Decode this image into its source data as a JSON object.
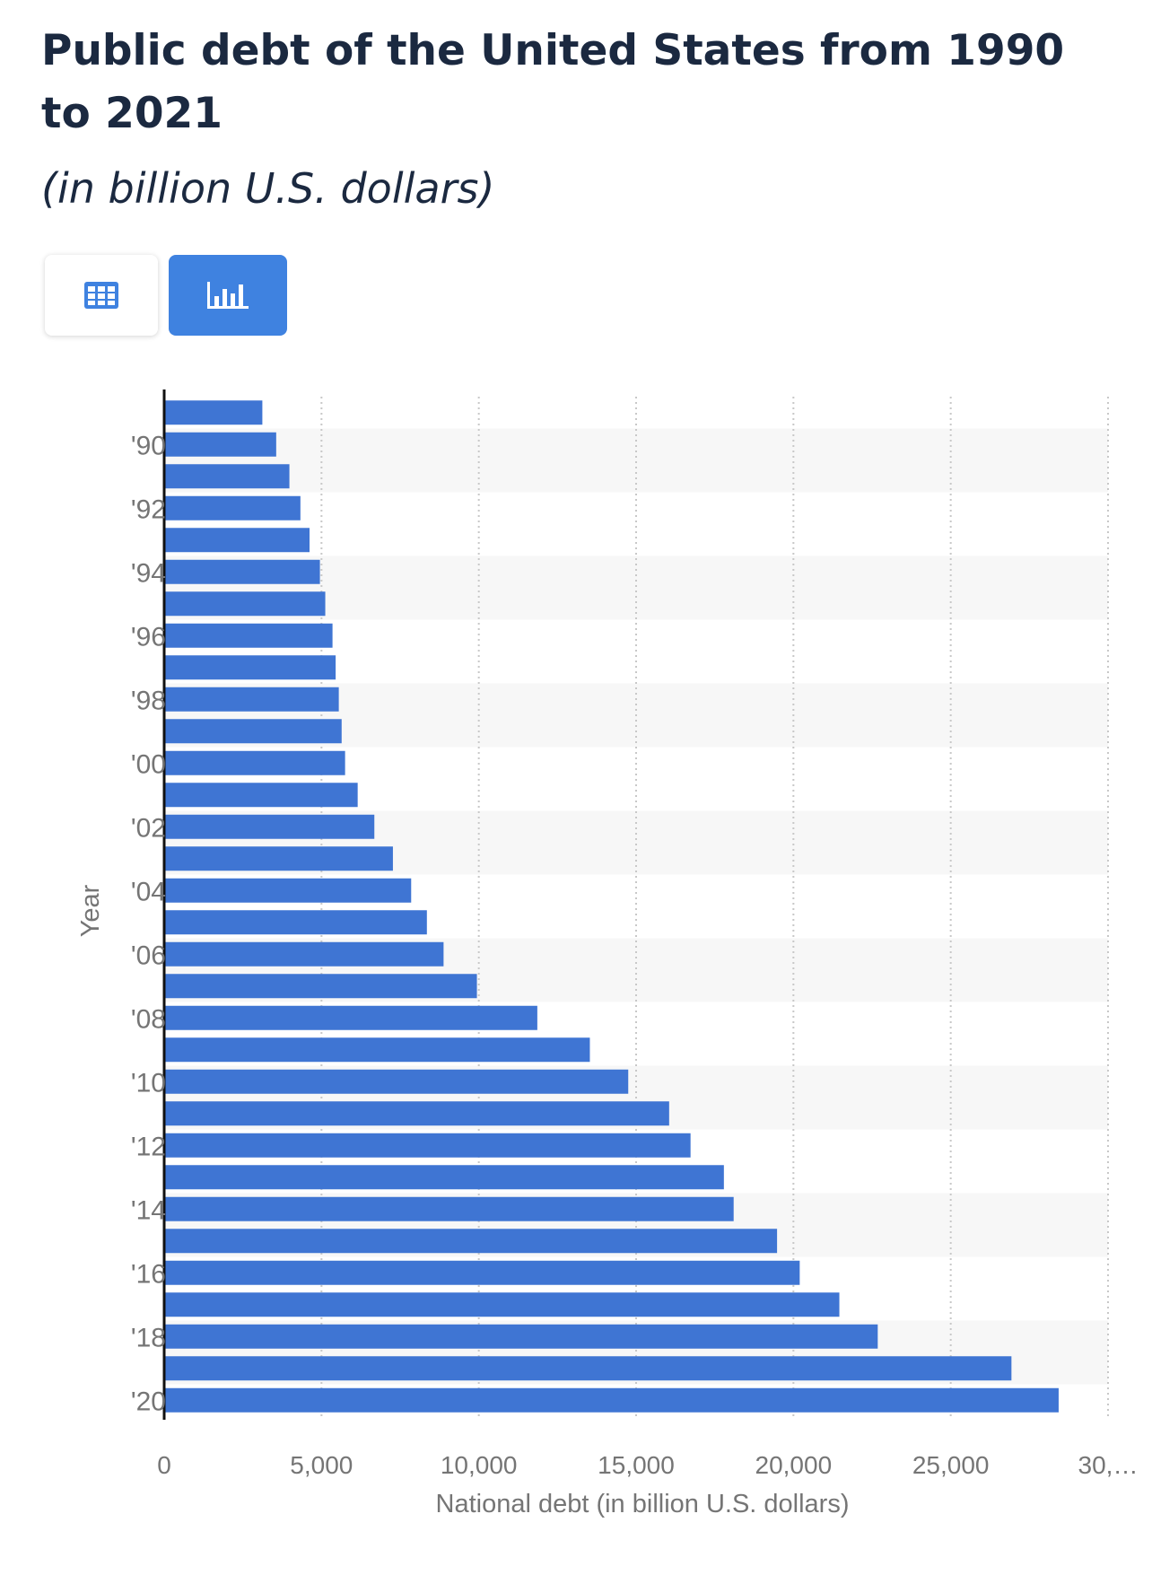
{
  "header": {
    "title": "Public debt of the United States from 1990 to 2021",
    "subtitle": "(in billion U.S. dollars)"
  },
  "view_toggle": {
    "table_icon": "table-icon",
    "chart_icon": "bar-chart-icon",
    "active": "chart"
  },
  "colors": {
    "bar": "#3f75d3",
    "title": "#1b2940",
    "active_button": "#3f82e0",
    "band": "#f7f7f7",
    "grid": "#c8c8c8",
    "axis": "#111111",
    "tick_text": "#757575"
  },
  "chart_data": {
    "type": "bar",
    "orientation": "horizontal",
    "ylabel": "Year",
    "xlabel": "National debt (in billion U.S. dollars)",
    "xlim": [
      0,
      30000
    ],
    "x_ticks": [
      "0",
      "5,000",
      "10,000",
      "15,000",
      "20,000",
      "25,000",
      "30,…"
    ],
    "y_tick_labels": [
      "'90",
      "'92",
      "'94",
      "'96",
      "'98",
      "'00",
      "'02",
      "'04",
      "'06",
      "'08",
      "'10",
      "'12",
      "'14",
      "'16",
      "'18",
      "'20"
    ],
    "values": [
      3120,
      3560,
      3980,
      4330,
      4620,
      4950,
      5120,
      5350,
      5450,
      5550,
      5640,
      5750,
      6150,
      6680,
      7270,
      7850,
      8350,
      8880,
      9940,
      11860,
      13530,
      14750,
      16050,
      16730,
      17790,
      18100,
      19480,
      20200,
      21460,
      22680,
      26930,
      28430
    ],
    "grid": true,
    "legend": "none"
  }
}
